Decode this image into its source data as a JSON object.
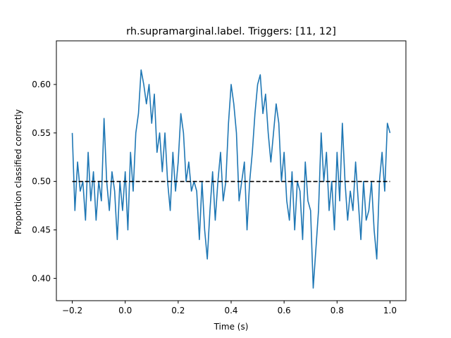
{
  "chart_data": {
    "type": "line",
    "title": "rh.supramarginal.label. Triggers: [11, 12]",
    "xlabel": "Time (s)",
    "ylabel": "Proportion classified correctly",
    "xlim": [
      -0.26,
      1.06
    ],
    "ylim": [
      0.377,
      0.645
    ],
    "xticks": [
      -0.2,
      0.0,
      0.2,
      0.4,
      0.6,
      0.8,
      1.0
    ],
    "xtick_labels": [
      "−0.2",
      "0.0",
      "0.2",
      "0.4",
      "0.6",
      "0.8",
      "1.0"
    ],
    "yticks": [
      0.4,
      0.45,
      0.5,
      0.55,
      0.6
    ],
    "ytick_labels": [
      "0.40",
      "0.45",
      "0.50",
      "0.55",
      "0.60"
    ],
    "grid": false,
    "legend": "none",
    "series": [
      {
        "color": "#1f77b4",
        "style": "solid",
        "x": [
          -0.2,
          -0.19,
          -0.18,
          -0.17,
          -0.16,
          -0.15,
          -0.14,
          -0.13,
          -0.12,
          -0.11,
          -0.1,
          -0.09,
          -0.08,
          -0.07,
          -0.06,
          -0.05,
          -0.04,
          -0.03,
          -0.02,
          -0.01,
          0.0,
          0.01,
          0.02,
          0.03,
          0.04,
          0.05,
          0.06,
          0.07,
          0.08,
          0.09,
          0.1,
          0.11,
          0.12,
          0.13,
          0.14,
          0.15,
          0.16,
          0.17,
          0.18,
          0.19,
          0.2,
          0.21,
          0.22,
          0.23,
          0.24,
          0.25,
          0.26,
          0.27,
          0.28,
          0.29,
          0.3,
          0.31,
          0.32,
          0.33,
          0.34,
          0.35,
          0.36,
          0.37,
          0.38,
          0.39,
          0.4,
          0.41,
          0.42,
          0.43,
          0.44,
          0.45,
          0.46,
          0.47,
          0.48,
          0.49,
          0.5,
          0.51,
          0.52,
          0.53,
          0.54,
          0.55,
          0.56,
          0.57,
          0.58,
          0.59,
          0.6,
          0.61,
          0.62,
          0.63,
          0.64,
          0.65,
          0.66,
          0.67,
          0.68,
          0.69,
          0.7,
          0.71,
          0.72,
          0.73,
          0.74,
          0.75,
          0.76,
          0.77,
          0.78,
          0.79,
          0.8,
          0.81,
          0.82,
          0.83,
          0.84,
          0.85,
          0.86,
          0.87,
          0.88,
          0.89,
          0.9,
          0.91,
          0.92,
          0.93,
          0.94,
          0.95,
          0.96,
          0.97,
          0.98,
          0.99,
          1.0
        ],
        "y": [
          0.55,
          0.47,
          0.52,
          0.49,
          0.5,
          0.46,
          0.53,
          0.48,
          0.51,
          0.46,
          0.5,
          0.48,
          0.565,
          0.5,
          0.47,
          0.51,
          0.49,
          0.44,
          0.5,
          0.47,
          0.51,
          0.45,
          0.53,
          0.49,
          0.55,
          0.57,
          0.615,
          0.6,
          0.58,
          0.6,
          0.56,
          0.59,
          0.53,
          0.55,
          0.51,
          0.55,
          0.5,
          0.47,
          0.53,
          0.49,
          0.52,
          0.57,
          0.55,
          0.5,
          0.52,
          0.49,
          0.5,
          0.49,
          0.44,
          0.5,
          0.45,
          0.42,
          0.47,
          0.51,
          0.46,
          0.5,
          0.53,
          0.48,
          0.5,
          0.56,
          0.6,
          0.58,
          0.55,
          0.48,
          0.5,
          0.52,
          0.45,
          0.5,
          0.53,
          0.57,
          0.6,
          0.61,
          0.57,
          0.59,
          0.55,
          0.52,
          0.55,
          0.58,
          0.56,
          0.5,
          0.53,
          0.48,
          0.46,
          0.51,
          0.45,
          0.5,
          0.49,
          0.44,
          0.52,
          0.48,
          0.47,
          0.39,
          0.43,
          0.47,
          0.55,
          0.5,
          0.53,
          0.47,
          0.5,
          0.45,
          0.53,
          0.48,
          0.56,
          0.5,
          0.46,
          0.49,
          0.47,
          0.52,
          0.48,
          0.44,
          0.5,
          0.46,
          0.47,
          0.5,
          0.45,
          0.42,
          0.5,
          0.53,
          0.49,
          0.56,
          0.55
        ]
      },
      {
        "color": "#000000",
        "style": "dashed",
        "x": [
          -0.2,
          1.0
        ],
        "y": [
          0.5,
          0.5
        ]
      }
    ]
  }
}
